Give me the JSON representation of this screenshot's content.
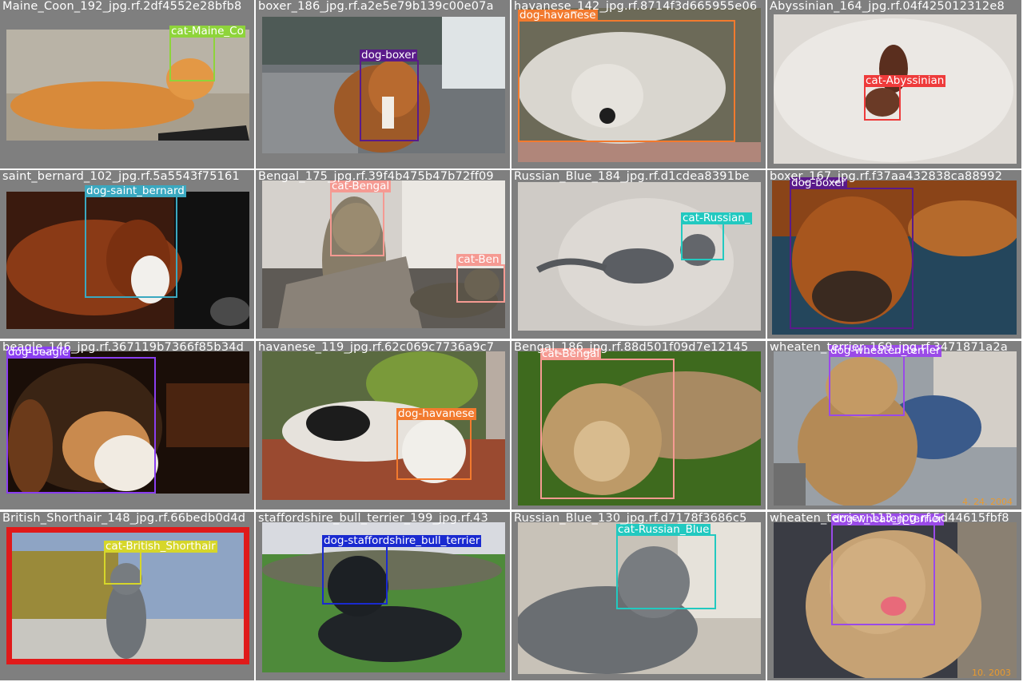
{
  "tiles": [
    {
      "filename": "Maine_Coon_192_jpg.rf.2df4552e28bfb8",
      "photo": {
        "subject": "ginger long-haired cat lying on carpet"
      },
      "detections": [
        {
          "label": "cat-Maine_Co",
          "color": "#8ed43a"
        }
      ]
    },
    {
      "filename": "boxer_186_jpg.rf.a2e5e79b139c00e07a",
      "photo": {
        "subject": "boxer dog in car back seat"
      },
      "detections": [
        {
          "label": "dog-boxer",
          "color": "#5a1a8a"
        }
      ]
    },
    {
      "filename": "havanese_142_jpg.rf.8714f3d665955e06",
      "photo": {
        "subject": "white havanese dog close-up"
      },
      "detections": [
        {
          "label": "dog-havanese",
          "color": "#f27a2e"
        }
      ]
    },
    {
      "filename": "Abyssinian_164_jpg.rf.04f425012312e8",
      "photo": {
        "subject": "abyssinian cat on white shag rug"
      },
      "detections": [
        {
          "label": "cat-Abyssinian",
          "color": "#ee3b3b"
        }
      ]
    },
    {
      "filename": "saint_bernard_102_jpg.rf.5a5543f75161",
      "photo": {
        "subject": "saint bernard dog lying on wood floor"
      },
      "detections": [
        {
          "label": "dog-saint_bernard",
          "color": "#3aa8c0"
        }
      ]
    },
    {
      "filename": "Bengal_175_jpg.rf.39f4b475b47b72ff09",
      "photo": {
        "subject": "bengal cats on a scratching post"
      },
      "detections": [
        {
          "label": "cat-Bengal",
          "color": "#f59a92"
        },
        {
          "label": "cat-Ben",
          "color": "#f59a92"
        }
      ]
    },
    {
      "filename": "Russian_Blue_184_jpg.rf.d1cdea8391be",
      "photo": {
        "subject": "grey russian blue cat on carpet"
      },
      "detections": [
        {
          "label": "cat-Russian_",
          "color": "#22c9c0"
        }
      ]
    },
    {
      "filename": "boxer_167_jpg.rf.f37aa432838ca88992",
      "photo": {
        "subject": "boxer dog lying on blanket"
      },
      "detections": [
        {
          "label": "dog-boxer",
          "color": "#5a1a8a"
        }
      ]
    },
    {
      "filename": "beagle_146_jpg.rf.367119b7366f85b34d",
      "photo": {
        "subject": "beagle puppy portrait"
      },
      "detections": [
        {
          "label": "dog-beagle",
          "color": "#8a3ef0"
        }
      ]
    },
    {
      "filename": "havanese_119_jpg.rf.62c069c7736a9c7",
      "photo": {
        "subject": "black and white havanese on brick wall"
      },
      "detections": [
        {
          "label": "dog-havanese",
          "color": "#f27a2e"
        }
      ]
    },
    {
      "filename": "Bengal_186_jpg.rf.88d501f09d7e12145",
      "photo": {
        "subject": "bengal cat lying in grass"
      },
      "detections": [
        {
          "label": "cat-Bengal",
          "color": "#f59a92"
        }
      ]
    },
    {
      "filename": "wheaten_terrier_169_jpg.rf.3471871a2a",
      "photo": {
        "subject": "wheaten terrier held by a person"
      },
      "detections": [
        {
          "label": "dog-wheaten_terrier",
          "color": "#9a4ae8"
        }
      ],
      "stamp": "4. 24. 2004"
    },
    {
      "filename": "British_Shorthair_148_jpg.rf.66bedb0d4d",
      "photo": {
        "subject": "grey british shorthair cat on rooftop"
      },
      "detections": [
        {
          "label": "cat-British_Shorthair",
          "color": "#d6d62a"
        }
      ]
    },
    {
      "filename": "staffordshire_bull_terrier_199_jpg.rf.43",
      "photo": {
        "subject": "black staffordshire terrier lying in grass"
      },
      "detections": [
        {
          "label": "dog-staffordshire_bull_terrier",
          "color": "#1a2ad0"
        }
      ]
    },
    {
      "filename": "Russian_Blue_130_jpg.rf.d7178f3686c5",
      "photo": {
        "subject": "russian blue cat lying looking up"
      },
      "detections": [
        {
          "label": "cat-Russian_Blue",
          "color": "#22c9c0"
        }
      ]
    },
    {
      "filename": "wheaten_terrier_113_jpg.rf.5d44615fbf8",
      "photo": {
        "subject": "wheaten terrier smiling portrait"
      },
      "detections": [
        {
          "label": "dog-wheaten_terrier",
          "color": "#9a4ae8"
        }
      ],
      "stamp": "10. 2003"
    }
  ]
}
